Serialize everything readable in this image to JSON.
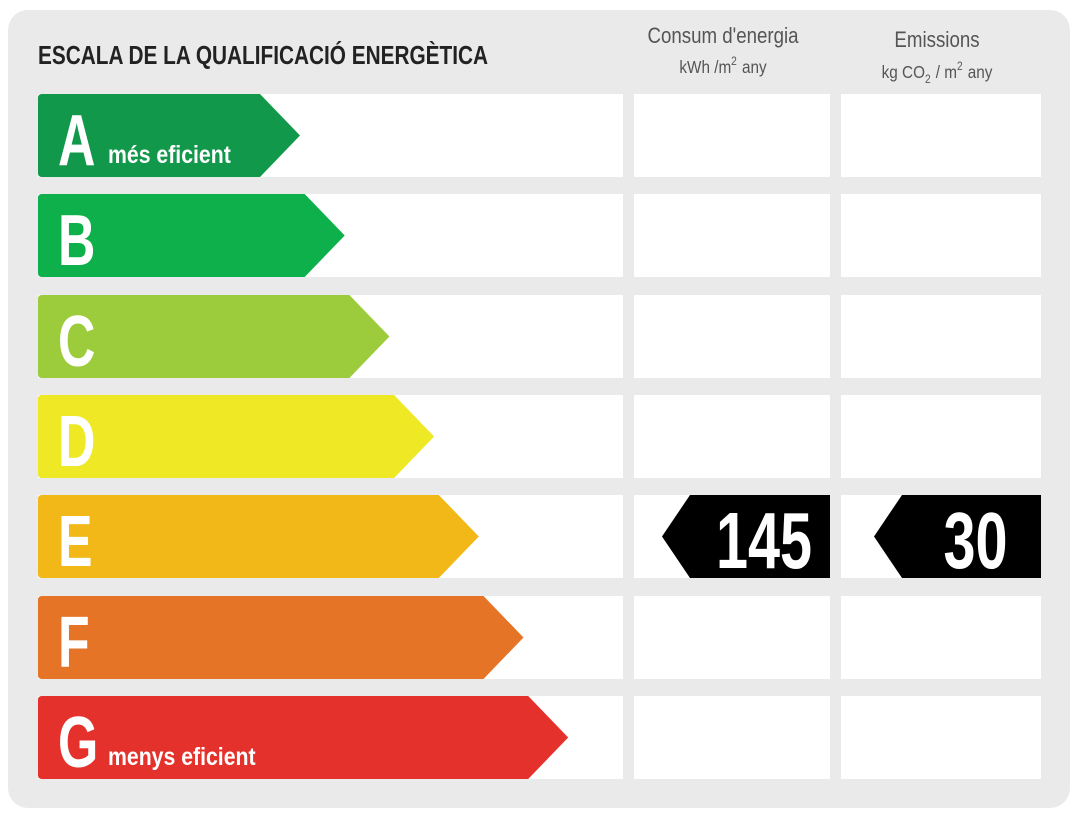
{
  "header": {
    "title": "ESCALA DE LA QUALIFICACIÓ ENERGÈTICA"
  },
  "columns": [
    {
      "title": "Consum d'energia",
      "unit": [
        {
          "text": "kWh /m"
        },
        {
          "sup": "2"
        },
        {
          "text": "any"
        }
      ]
    },
    {
      "title": "Emissions",
      "unit": [
        {
          "text": "kg CO"
        },
        {
          "sub": "2"
        },
        {
          "text": "/ m"
        },
        {
          "sup": "2"
        },
        {
          "text": "any"
        }
      ]
    }
  ],
  "rows": [
    {
      "letter": "A",
      "note": "més eficient",
      "color": "#12984a"
    },
    {
      "letter": "B",
      "color": "#0db04b"
    },
    {
      "letter": "C",
      "color": "#9ccb3b"
    },
    {
      "letter": "D",
      "color": "#efe824"
    },
    {
      "letter": "E",
      "color": "#f1b817",
      "consumption": 145,
      "emissions": 30
    },
    {
      "letter": "F",
      "color": "#e57427"
    },
    {
      "letter": "G",
      "note": "menys eficient",
      "color": "#e4312b"
    }
  ]
}
